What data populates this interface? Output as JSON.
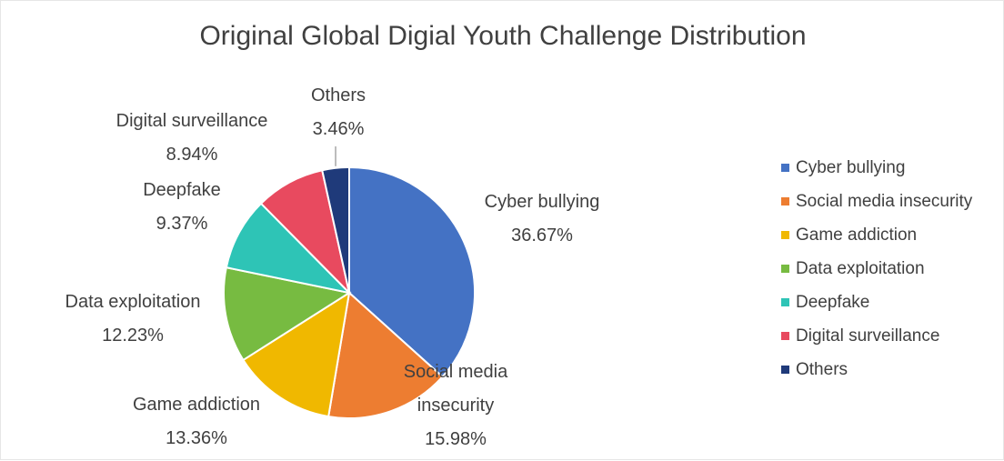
{
  "chart_data": {
    "type": "pie",
    "title": "Original Global Digial Youth Challenge Distribution",
    "legend_position": "right",
    "slices": [
      {
        "label": "Cyber bullying",
        "value": 36.67,
        "value_label": "36.67%",
        "color": "#4472C4"
      },
      {
        "label": "Social media insecurity",
        "value": 15.98,
        "value_label": "15.98%",
        "color": "#ED7D31"
      },
      {
        "label": "Game addiction",
        "value": 13.36,
        "value_label": "13.36%",
        "color": "#F0B800"
      },
      {
        "label": "Data exploitation",
        "value": 12.23,
        "value_label": "12.23%",
        "color": "#77BB41"
      },
      {
        "label": "Deepfake",
        "value": 9.37,
        "value_label": "9.37%",
        "color": "#2EC4B6"
      },
      {
        "label": "Digital surveillance",
        "value": 8.94,
        "value_label": "8.94%",
        "color": "#E84A5F"
      },
      {
        "label": "Others",
        "value": 3.46,
        "value_label": "3.46%",
        "color": "#1F3A7A"
      }
    ],
    "data_label_lines": {
      "Social media insecurity": [
        "Social media",
        "insecurity"
      ]
    }
  }
}
